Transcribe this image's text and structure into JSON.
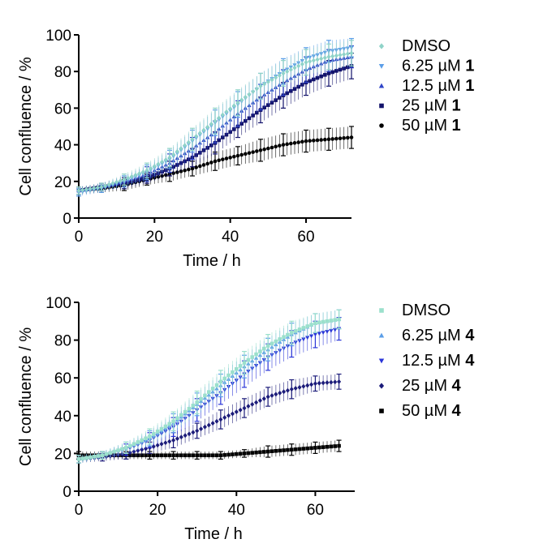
{
  "chart_data": [
    {
      "type": "line",
      "xlabel": "Time / h",
      "ylabel": "Cell confluence / %",
      "xlim": [
        0,
        72
      ],
      "ylim": [
        0,
        100
      ],
      "xticks": [
        0,
        20,
        40,
        60
      ],
      "yticks": [
        0,
        20,
        40,
        60,
        80,
        100
      ],
      "grid": false,
      "legend_position": "right",
      "error_bars": true,
      "x": [
        0,
        6,
        12,
        18,
        24,
        30,
        36,
        42,
        48,
        54,
        60,
        66,
        72
      ],
      "series": [
        {
          "name": "DMSO",
          "legend_prefix": "",
          "legend_bold": "",
          "color": "#8fd3c8",
          "marker": "diamond",
          "values": [
            15,
            17,
            21,
            26,
            33,
            43,
            53,
            63,
            72,
            79,
            85,
            88,
            90
          ],
          "errors": [
            2,
            2,
            3,
            4,
            5,
            6,
            7,
            7,
            7,
            7,
            7,
            7,
            7
          ]
        },
        {
          "name": "6.25 µM 1",
          "legend_prefix": "6.25 µM ",
          "legend_bold": "1",
          "color": "#5b9ee8",
          "marker": "triangle-down",
          "values": [
            14,
            16,
            20,
            25,
            32,
            42,
            52,
            62,
            72,
            80,
            87,
            91,
            93
          ],
          "errors": [
            2,
            2,
            3,
            4,
            5,
            6,
            7,
            7,
            7,
            7,
            6,
            6,
            5
          ]
        },
        {
          "name": "12.5 µM 1",
          "legend_prefix": "12.5 µM ",
          "legend_bold": "1",
          "color": "#2f45c8",
          "marker": "triangle-up",
          "values": [
            15,
            17,
            20,
            24,
            30,
            38,
            47,
            57,
            66,
            74,
            81,
            86,
            88
          ],
          "errors": [
            2,
            2,
            3,
            4,
            5,
            6,
            6,
            7,
            7,
            7,
            7,
            6,
            6
          ]
        },
        {
          "name": "25 µM 1",
          "legend_prefix": "25 µM ",
          "legend_bold": "1",
          "color": "#12126b",
          "marker": "square",
          "values": [
            15,
            17,
            19,
            22,
            27,
            33,
            41,
            50,
            59,
            67,
            74,
            79,
            83
          ],
          "errors": [
            2,
            2,
            3,
            3,
            4,
            5,
            6,
            6,
            7,
            7,
            7,
            7,
            7
          ]
        },
        {
          "name": "50 µM 1",
          "legend_prefix": "50 µM ",
          "legend_bold": "1",
          "color": "#000000",
          "marker": "circle",
          "values": [
            15,
            16,
            18,
            21,
            24,
            27,
            31,
            34,
            37,
            40,
            42,
            43,
            44
          ],
          "errors": [
            2,
            2,
            3,
            3,
            4,
            4,
            5,
            5,
            6,
            6,
            6,
            6,
            6
          ]
        }
      ]
    },
    {
      "type": "line",
      "xlabel": "Time / h",
      "ylabel": "Cell confluence / %",
      "xlim": [
        0,
        70
      ],
      "ylim": [
        0,
        100
      ],
      "xticks": [
        0,
        20,
        40,
        60
      ],
      "yticks": [
        0,
        20,
        40,
        60,
        80,
        100
      ],
      "grid": false,
      "legend_position": "right",
      "error_bars": true,
      "x": [
        0,
        6,
        12,
        18,
        24,
        30,
        36,
        42,
        48,
        54,
        60,
        66
      ],
      "series": [
        {
          "name": "DMSO",
          "legend_prefix": "",
          "legend_bold": "",
          "color": "#9be0cc",
          "marker": "square",
          "values": [
            17,
            19,
            23,
            29,
            37,
            47,
            58,
            68,
            77,
            84,
            89,
            91
          ],
          "errors": [
            2,
            2,
            3,
            4,
            5,
            6,
            6,
            6,
            6,
            6,
            5,
            5
          ]
        },
        {
          "name": "6.25 µM 4",
          "legend_prefix": "6.25 µM ",
          "legend_bold": "4",
          "color": "#5b9ee8",
          "marker": "triangle-up",
          "values": [
            17,
            19,
            23,
            28,
            36,
            46,
            56,
            66,
            75,
            83,
            89,
            91
          ],
          "errors": [
            2,
            2,
            3,
            4,
            5,
            6,
            6,
            6,
            6,
            6,
            5,
            5
          ]
        },
        {
          "name": "12.5 µM 4",
          "legend_prefix": "12.5 µM ",
          "legend_bold": "4",
          "color": "#2a35d8",
          "marker": "triangle-down",
          "values": [
            17,
            19,
            22,
            27,
            34,
            43,
            52,
            62,
            71,
            78,
            83,
            86
          ],
          "errors": [
            2,
            2,
            3,
            4,
            5,
            6,
            6,
            7,
            7,
            7,
            7,
            6
          ]
        },
        {
          "name": "25 µM 4",
          "legend_prefix": "25 µM ",
          "legend_bold": "4",
          "color": "#1c1c7a",
          "marker": "diamond",
          "values": [
            17,
            18,
            20,
            23,
            27,
            32,
            38,
            44,
            50,
            54,
            57,
            58
          ],
          "errors": [
            2,
            2,
            3,
            3,
            4,
            4,
            5,
            5,
            5,
            5,
            4,
            4
          ]
        },
        {
          "name": "50 µM 4",
          "legend_prefix": "50 µM ",
          "legend_bold": "4",
          "color": "#000000",
          "marker": "square",
          "values": [
            19,
            19,
            19,
            19,
            19,
            19,
            19,
            20,
            21,
            22,
            23,
            24
          ],
          "errors": [
            2,
            2,
            2,
            2,
            2,
            2,
            2,
            2,
            3,
            3,
            3,
            3
          ]
        }
      ]
    }
  ]
}
